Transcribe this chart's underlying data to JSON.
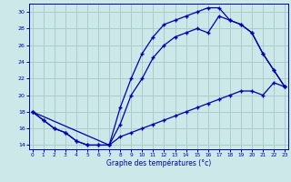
{
  "xlabel": "Graphe des températures (°c)",
  "bg_color": "#cce8e8",
  "grid_color": "#aacccc",
  "line_color": "#0000aa",
  "ylim": [
    13.5,
    31
  ],
  "xlim": [
    -0.3,
    23.3
  ],
  "yticks": [
    14,
    16,
    18,
    20,
    22,
    24,
    26,
    28,
    30
  ],
  "xticks": [
    0,
    1,
    2,
    3,
    4,
    5,
    6,
    7,
    8,
    9,
    10,
    11,
    12,
    13,
    14,
    15,
    16,
    17,
    18,
    19,
    20,
    21,
    22,
    23
  ],
  "line1_x": [
    0,
    1,
    2,
    3,
    4,
    5,
    6,
    7,
    8,
    9,
    10,
    11,
    12,
    13,
    14,
    15,
    16,
    17,
    18,
    19,
    20,
    21,
    22,
    23
  ],
  "line1_y": [
    18.0,
    17.0,
    16.0,
    15.5,
    14.5,
    14.0,
    14.0,
    14.0,
    18.5,
    22.0,
    25.0,
    27.0,
    28.5,
    29.0,
    29.5,
    30.0,
    30.5,
    30.5,
    29.0,
    28.5,
    27.5,
    25.0,
    23.0,
    21.0
  ],
  "line2_x": [
    0,
    1,
    2,
    3,
    4,
    5,
    6,
    7,
    8,
    9,
    10,
    11,
    12,
    13,
    14,
    15,
    16,
    17,
    18,
    19,
    20,
    21,
    22,
    23
  ],
  "line2_y": [
    18.0,
    17.0,
    16.0,
    15.5,
    14.5,
    14.0,
    14.0,
    14.0,
    15.0,
    15.5,
    16.0,
    16.5,
    17.0,
    17.5,
    18.0,
    18.5,
    19.0,
    19.5,
    20.0,
    20.5,
    20.5,
    20.0,
    21.5,
    21.0
  ],
  "line3_x": [
    0,
    7,
    8,
    9,
    10,
    11,
    12,
    13,
    14,
    15,
    16,
    17,
    18,
    19,
    20,
    21,
    22,
    23
  ],
  "line3_y": [
    18.0,
    14.0,
    16.5,
    20.0,
    22.0,
    24.5,
    26.0,
    27.0,
    27.5,
    28.0,
    27.5,
    29.5,
    29.0,
    28.5,
    27.5,
    25.0,
    23.0,
    21.0
  ]
}
